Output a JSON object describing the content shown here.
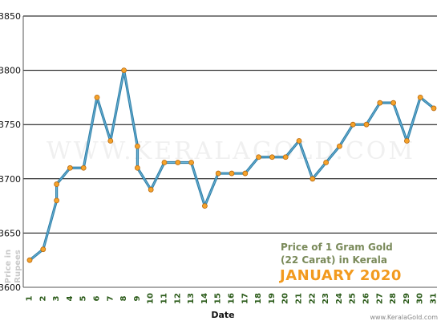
{
  "chart_data": {
    "type": "line",
    "title_line1": "Price of 1 Gram Gold",
    "title_line2": "(22 Carat) in Kerala",
    "subtitle": "JANUARY 2020",
    "xlabel": "Date",
    "ylabel_line1": "Price in",
    "ylabel_line2": "Rupees",
    "watermark": "WWW.KERALAGOLD.COM",
    "credit": "www.KeralaGold.com",
    "ylim": [
      3600,
      3850
    ],
    "yticks": [
      3600,
      3650,
      3700,
      3750,
      3800,
      3850
    ],
    "xticks": [
      1,
      2,
      3,
      4,
      5,
      6,
      7,
      8,
      9,
      10,
      11,
      12,
      13,
      14,
      15,
      16,
      17,
      18,
      19,
      20,
      21,
      22,
      23,
      24,
      25,
      26,
      27,
      28,
      29,
      30,
      31
    ],
    "grid": true,
    "series": [
      {
        "points": [
          {
            "date": 1,
            "price": 3625
          },
          {
            "date": 2,
            "price": 3635
          },
          {
            "date": 3,
            "price": 3680
          },
          {
            "date": 3,
            "price": 3695
          },
          {
            "date": 4,
            "price": 3710
          },
          {
            "date": 5,
            "price": 3710
          },
          {
            "date": 6,
            "price": 3775
          },
          {
            "date": 7,
            "price": 3735
          },
          {
            "date": 8,
            "price": 3800
          },
          {
            "date": 9,
            "price": 3730
          },
          {
            "date": 9,
            "price": 3710
          },
          {
            "date": 10,
            "price": 3690
          },
          {
            "date": 11,
            "price": 3715
          },
          {
            "date": 12,
            "price": 3715
          },
          {
            "date": 13,
            "price": 3715
          },
          {
            "date": 14,
            "price": 3675
          },
          {
            "date": 15,
            "price": 3705
          },
          {
            "date": 16,
            "price": 3705
          },
          {
            "date": 17,
            "price": 3705
          },
          {
            "date": 18,
            "price": 3720
          },
          {
            "date": 19,
            "price": 3720
          },
          {
            "date": 20,
            "price": 3720
          },
          {
            "date": 21,
            "price": 3735
          },
          {
            "date": 22,
            "price": 3700
          },
          {
            "date": 23,
            "price": 3715
          },
          {
            "date": 24,
            "price": 3730
          },
          {
            "date": 25,
            "price": 3750
          },
          {
            "date": 26,
            "price": 3750
          },
          {
            "date": 27,
            "price": 3770
          },
          {
            "date": 28,
            "price": 3770
          },
          {
            "date": 29,
            "price": 3735
          },
          {
            "date": 30,
            "price": 3775
          },
          {
            "date": 31,
            "price": 3765
          }
        ]
      }
    ],
    "colors": {
      "line": "#2f7fa8",
      "line_highlight": "#7cc0e0",
      "marker": "#f5a22a",
      "marker_stroke": "#b86a10",
      "grid": "#000000",
      "axis": "#555555"
    }
  }
}
